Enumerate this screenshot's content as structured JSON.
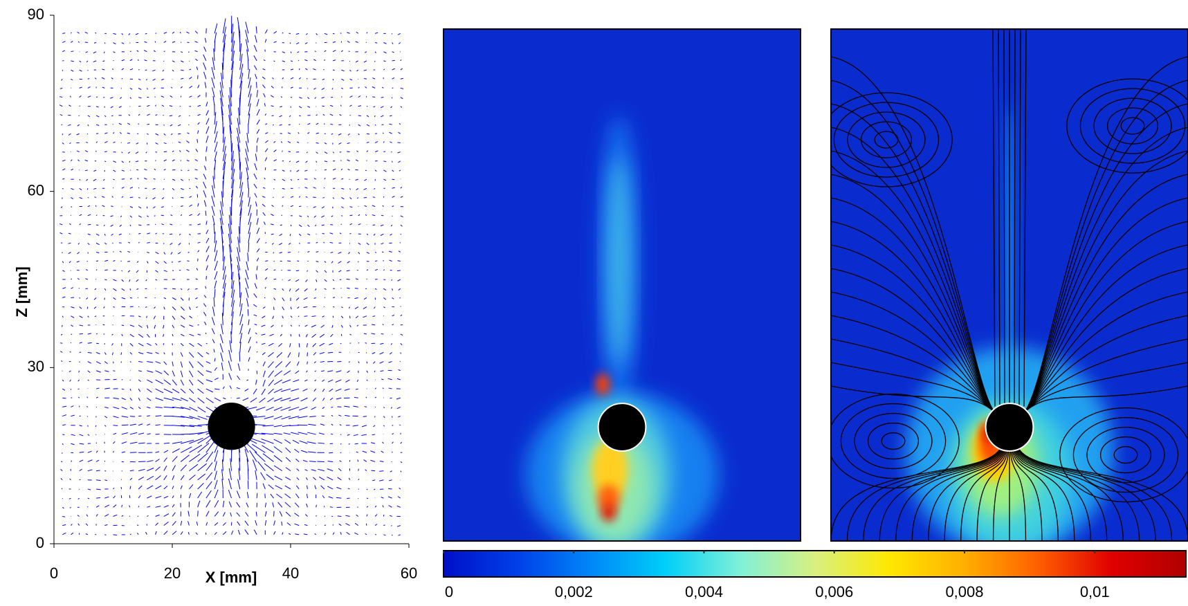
{
  "chart_data": [
    {
      "type": "quiver",
      "xlim": [
        0,
        60
      ],
      "ylim": [
        0,
        90
      ],
      "xticks": [
        0,
        20,
        40,
        60
      ],
      "yticks": [
        0,
        30,
        60,
        90
      ],
      "xlabel": "X [mm]",
      "ylabel": "Z [mm]",
      "color": "#0000ff",
      "sphere": {
        "x": 30,
        "z": 20,
        "diameter": 8
      }
    },
    {
      "type": "heatmap",
      "xlim": [
        0,
        60
      ],
      "ylim": [
        0,
        90
      ],
      "sphere": {
        "x": 30,
        "z": 20,
        "diameter": 8
      }
    },
    {
      "type": "heatmap",
      "streamlines": true,
      "xlim": [
        0,
        60
      ],
      "ylim": [
        0,
        90
      ],
      "sphere": {
        "x": 30,
        "z": 20,
        "diameter": 8
      }
    },
    {
      "type": "colorbar",
      "clim": [
        0,
        0.0114
      ],
      "ticks": [
        0,
        {
          "value": 0.002,
          "label": "0,002"
        },
        {
          "value": 0.004,
          "label": "0,004"
        },
        {
          "value": 0.006,
          "label": "0,006"
        },
        {
          "value": 0.008,
          "label": "0,008"
        },
        {
          "value": 0.01,
          "label": "0,01"
        }
      ],
      "colors": [
        "#0010c8",
        "#0040e8",
        "#0088f8",
        "#00d0f8",
        "#80f0d8",
        "#d8f080",
        "#ffe800",
        "#ffb000",
        "#ff6000",
        "#e00000",
        "#b00000"
      ]
    }
  ]
}
